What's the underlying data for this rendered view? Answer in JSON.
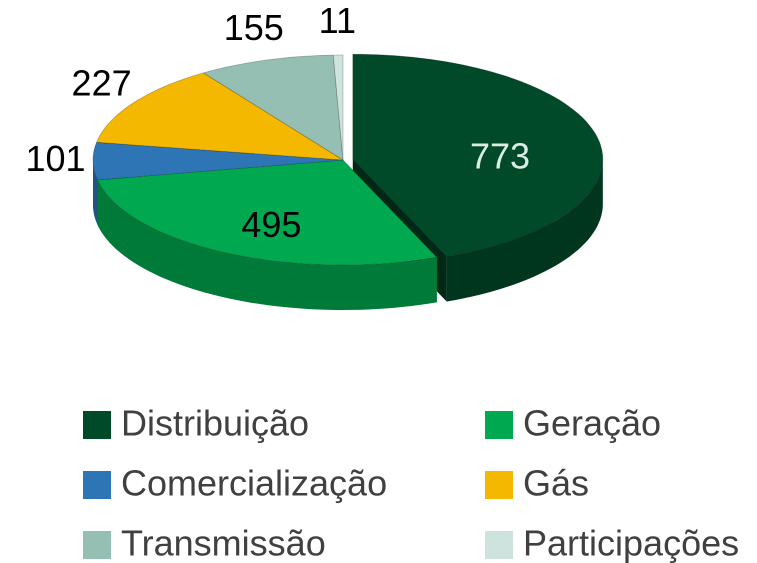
{
  "chart_data": {
    "type": "pie",
    "categories": [
      "Distribuição",
      "Geração",
      "Comercialização",
      "Gás",
      "Transmissão",
      "Participações"
    ],
    "values": [
      773,
      495,
      101,
      227,
      155,
      11
    ],
    "colors": [
      "#004a2a",
      "#00a94f",
      "#2e75b6",
      "#f5b800",
      "#95bfb3",
      "#cfe3de"
    ],
    "legend": "bottom"
  }
}
